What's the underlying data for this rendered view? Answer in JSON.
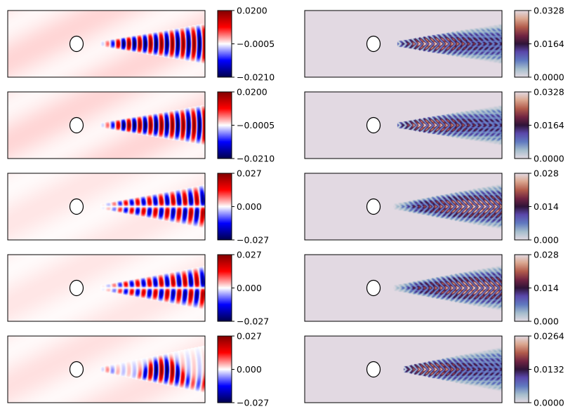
{
  "colors": {
    "seismic_low": "#00004c",
    "seismic_mid": "#ffffff",
    "seismic_high": "#800000",
    "twilight_base": "#e2d9e2",
    "obstacle_fill": "#ffffff",
    "frame": "#000000"
  },
  "chart_data": [
    {
      "type": "heatmap",
      "row": 1,
      "column": "left",
      "colormap": "seismic",
      "field": "signed-wavefield",
      "colorbar": {
        "min": -0.021,
        "max": 0.02,
        "tick_values": [
          -0.021,
          -0.0005,
          0.02
        ],
        "tick_labels": [
          "−0.0210",
          "−0.0005",
          "0.0200"
        ]
      },
      "pattern": {
        "source_x_fraction": 0.5,
        "onset": 0.47,
        "wavelength": 0.055,
        "spread": 0.5,
        "mode": "symmetric",
        "background": 0.08
      }
    },
    {
      "type": "heatmap",
      "row": 1,
      "column": "right",
      "colormap": "twilight",
      "field": "magnitude",
      "colorbar": {
        "min": 0.0,
        "max": 0.0328,
        "tick_values": [
          0.0,
          0.0164,
          0.0328
        ],
        "tick_labels": [
          "0.0000",
          "0.0164",
          "0.0328"
        ]
      },
      "pattern": {
        "onset": 0.47,
        "hot_center": 0.62,
        "hot_width": 0.2,
        "spread": 0.5
      }
    },
    {
      "type": "heatmap",
      "row": 2,
      "column": "left",
      "colormap": "seismic",
      "field": "signed-wavefield",
      "colorbar": {
        "min": -0.021,
        "max": 0.02,
        "tick_values": [
          -0.021,
          -0.0005,
          0.02
        ],
        "tick_labels": [
          "−0.0210",
          "−0.0005",
          "0.0200"
        ]
      },
      "pattern": {
        "onset": 0.47,
        "wavelength": 0.055,
        "spread": 0.5,
        "mode": "symmetric",
        "background": 0.08
      }
    },
    {
      "type": "heatmap",
      "row": 2,
      "column": "right",
      "colormap": "twilight",
      "field": "magnitude",
      "colorbar": {
        "min": 0.0,
        "max": 0.0328,
        "tick_values": [
          0.0,
          0.0164,
          0.0328
        ],
        "tick_labels": [
          "0.0000",
          "0.0164",
          "0.0328"
        ]
      },
      "pattern": {
        "onset": 0.47,
        "hot_center": 0.6,
        "hot_width": 0.2,
        "spread": 0.5
      }
    },
    {
      "type": "heatmap",
      "row": 3,
      "column": "left",
      "colormap": "seismic",
      "field": "signed-wavefield",
      "colorbar": {
        "min": -0.027,
        "max": 0.027,
        "tick_values": [
          -0.027,
          0.0,
          0.027
        ],
        "tick_labels": [
          "−0.027",
          "0.000",
          "0.027"
        ]
      },
      "pattern": {
        "onset": 0.47,
        "wavelength": 0.06,
        "spread": 0.55,
        "mode": "antisymmetric",
        "background": 0.05
      }
    },
    {
      "type": "heatmap",
      "row": 3,
      "column": "right",
      "colormap": "twilight",
      "field": "magnitude",
      "colorbar": {
        "min": 0.0,
        "max": 0.028,
        "tick_values": [
          0.0,
          0.014,
          0.028
        ],
        "tick_labels": [
          "0.000",
          "0.014",
          "0.028"
        ]
      },
      "pattern": {
        "onset": 0.45,
        "hot_center": 0.87,
        "hot_width": 0.25,
        "spread": 0.55
      }
    },
    {
      "type": "heatmap",
      "row": 4,
      "column": "left",
      "colormap": "seismic",
      "field": "signed-wavefield",
      "colorbar": {
        "min": -0.027,
        "max": 0.027,
        "tick_values": [
          -0.027,
          0.0,
          0.027
        ],
        "tick_labels": [
          "−0.027",
          "0.000",
          "0.027"
        ]
      },
      "pattern": {
        "onset": 0.47,
        "wavelength": 0.06,
        "spread": 0.55,
        "mode": "antisymmetric",
        "background": 0.05
      }
    },
    {
      "type": "heatmap",
      "row": 4,
      "column": "right",
      "colormap": "twilight",
      "field": "magnitude",
      "colorbar": {
        "min": 0.0,
        "max": 0.028,
        "tick_values": [
          0.0,
          0.014,
          0.028
        ],
        "tick_labels": [
          "0.000",
          "0.014",
          "0.028"
        ]
      },
      "pattern": {
        "onset": 0.45,
        "hot_center": 0.87,
        "hot_width": 0.25,
        "spread": 0.55
      }
    },
    {
      "type": "heatmap",
      "row": 5,
      "column": "left",
      "colormap": "seismic",
      "field": "signed-wavefield",
      "colorbar": {
        "min": -0.027,
        "max": 0.027,
        "tick_values": [
          -0.027,
          0.0,
          0.027
        ],
        "tick_labels": [
          "−0.027",
          "0.000",
          "0.027"
        ]
      },
      "pattern": {
        "onset": 0.47,
        "wavelength": 0.055,
        "spread": 0.6,
        "mode": "mixed",
        "background": 0.06
      }
    },
    {
      "type": "heatmap",
      "row": 5,
      "column": "right",
      "colormap": "twilight",
      "field": "magnitude",
      "colorbar": {
        "min": 0.0,
        "max": 0.0264,
        "tick_values": [
          0.0,
          0.0132,
          0.0264
        ],
        "tick_labels": [
          "0.0000",
          "0.0132",
          "0.0264"
        ]
      },
      "pattern": {
        "onset": 0.5,
        "hot_center": 0.58,
        "hot_width": 0.2,
        "spread": 0.6
      }
    }
  ]
}
